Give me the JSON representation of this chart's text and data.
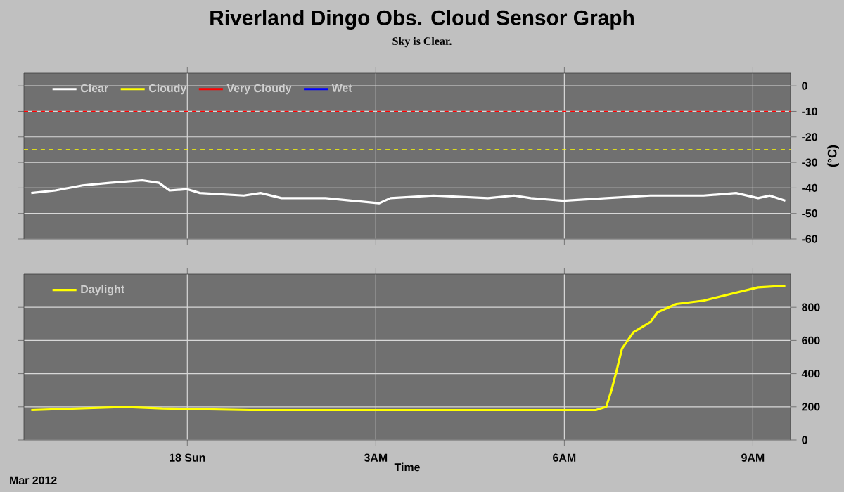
{
  "chart_data": [
    {
      "type": "line",
      "title": "Riverland Dingo Obs. Cloud Sensor Graph",
      "subtitle": "Sky is Clear.",
      "ylabel": "(°C)",
      "xlim": [
        "2012-03-17T21:24",
        "2012-03-18T09:36"
      ],
      "xticks": [
        {
          "value": "2012-03-18T00:00",
          "label": null
        },
        {
          "value": "2012-03-18T03:00",
          "label": null
        },
        {
          "value": "2012-03-18T06:00",
          "label": null
        },
        {
          "value": "2012-03-18T09:00",
          "label": null
        }
      ],
      "ylim": [
        -60,
        5
      ],
      "yticks": [
        -60,
        -50,
        -40,
        -30,
        -20,
        -10,
        0
      ],
      "tick_labels": "y",
      "grid": true,
      "legend": "top left",
      "marker": "none",
      "line_style": "solid",
      "ref_lines": [
        {
          "axis": "y",
          "value": -10,
          "color": "#ff0000",
          "line_style": "dashed"
        },
        {
          "axis": "y",
          "value": -25,
          "color": "#ffff00",
          "line_style": "dashed"
        }
      ],
      "series": [
        {
          "name": "Clear",
          "color": "#ffffff",
          "x": [
            "2012-03-17T21:31",
            "2012-03-17T21:54",
            "2012-03-17T22:20",
            "2012-03-17T22:46",
            "2012-03-17T23:17",
            "2012-03-17T23:33",
            "2012-03-17T23:43",
            "2012-03-18T00:00",
            "2012-03-18T00:12",
            "2012-03-18T00:54",
            "2012-03-18T01:10",
            "2012-03-18T01:30",
            "2012-03-18T02:12",
            "2012-03-18T02:38",
            "2012-03-18T03:03",
            "2012-03-18T03:14",
            "2012-03-18T03:55",
            "2012-03-18T04:47",
            "2012-03-18T05:12",
            "2012-03-18T05:28",
            "2012-03-18T05:59",
            "2012-03-18T06:40",
            "2012-03-18T07:22",
            "2012-03-18T08:13",
            "2012-03-18T08:44",
            "2012-03-18T09:05",
            "2012-03-18T09:16",
            "2012-03-18T09:31"
          ],
          "values": [
            -42,
            -41,
            -39,
            -38,
            -37,
            -38,
            -41,
            -40.5,
            -42,
            -43,
            -42,
            -44,
            -44,
            -45,
            -46,
            -44,
            -43,
            -44,
            -43,
            -44,
            -45,
            -44,
            -43,
            -43,
            -42,
            -44,
            -43,
            -45
          ]
        },
        {
          "name": "Cloudy",
          "color": "#ffff00"
        },
        {
          "name": "Very Cloudy",
          "color": "#ff0000"
        },
        {
          "name": "Wet",
          "color": "#0000ff"
        }
      ]
    },
    {
      "type": "line",
      "xlabel": "Time",
      "annotations": [
        "Mar 2012"
      ],
      "xlim": [
        "2012-03-17T21:24",
        "2012-03-18T09:36"
      ],
      "xticks": [
        {
          "value": "2012-03-18T00:00",
          "label": "18 Sun"
        },
        {
          "value": "2012-03-18T03:00",
          "label": "3AM"
        },
        {
          "value": "2012-03-18T06:00",
          "label": "6AM"
        },
        {
          "value": "2012-03-18T09:00",
          "label": "9AM"
        }
      ],
      "ylim": [
        0,
        1000
      ],
      "yticks": [
        0,
        200,
        400,
        600,
        800
      ],
      "grid": true,
      "legend": "top left",
      "marker": "none",
      "line_style": "solid",
      "series": [
        {
          "name": "Daylight",
          "color": "#ffff00",
          "x": [
            "2012-03-17T21:31",
            "2012-03-17T23:00",
            "2012-03-17T23:36",
            "2012-03-18T01:00",
            "2012-03-18T03:00",
            "2012-03-18T05:00",
            "2012-03-18T06:30",
            "2012-03-18T06:40",
            "2012-03-18T06:45",
            "2012-03-18T06:50",
            "2012-03-18T06:55",
            "2012-03-18T07:06",
            "2012-03-18T07:22",
            "2012-03-18T07:29",
            "2012-03-18T07:47",
            "2012-03-18T08:13",
            "2012-03-18T08:39",
            "2012-03-18T09:05",
            "2012-03-18T09:31"
          ],
          "values": [
            180,
            200,
            190,
            180,
            180,
            180,
            180,
            200,
            300,
            420,
            550,
            650,
            710,
            770,
            820,
            840,
            880,
            920,
            930
          ]
        }
      ]
    }
  ]
}
